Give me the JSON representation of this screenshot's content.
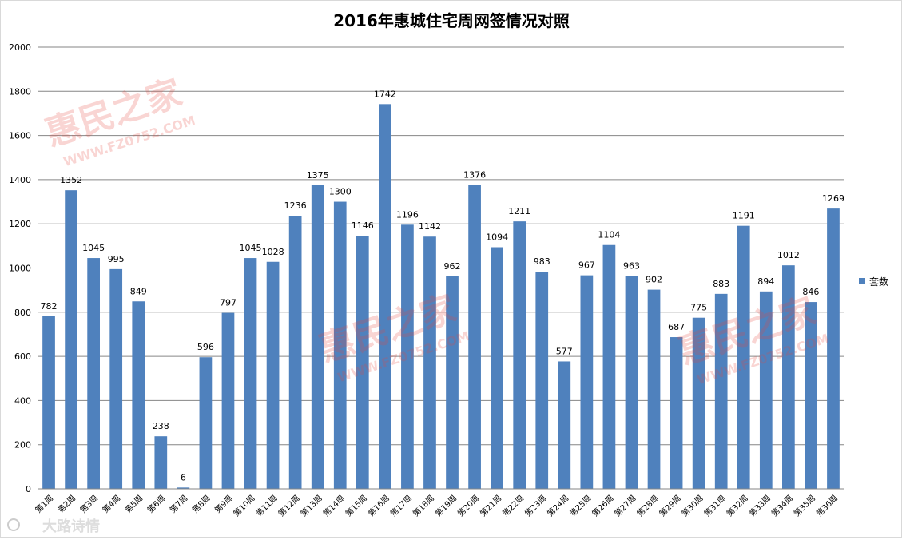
{
  "chart_data": {
    "type": "bar",
    "title": "2016年惠城住宅周网签情况对照",
    "xlabel": "",
    "ylabel": "",
    "ylim": [
      0,
      2000
    ],
    "yticks": [
      0,
      200,
      400,
      600,
      800,
      1000,
      1200,
      1400,
      1600,
      1800,
      2000
    ],
    "grid": true,
    "legend_position": "right",
    "categories": [
      "第1周",
      "第2周",
      "第3周",
      "第4周",
      "第5周",
      "第6周",
      "第7周",
      "第8周",
      "第9周",
      "第10周",
      "第11周",
      "第12周",
      "第13周",
      "第14周",
      "第15周",
      "第16周",
      "第17周",
      "第18周",
      "第19周",
      "第20周",
      "第21周",
      "第22周",
      "第23周",
      "第24周",
      "第25周",
      "第26周",
      "第27周",
      "第28周",
      "第29周",
      "第30周",
      "第31周",
      "第32周",
      "第33周",
      "第34周",
      "第35周",
      "第36周"
    ],
    "series": [
      {
        "name": "套数",
        "color": "#4f81bd",
        "values": [
          782,
          1352,
          1045,
          995,
          849,
          238,
          6,
          596,
          797,
          1045,
          1028,
          1236,
          1375,
          1300,
          1146,
          1742,
          1196,
          1142,
          962,
          1376,
          1094,
          1211,
          983,
          577,
          967,
          1104,
          963,
          902,
          687,
          775,
          883,
          1191,
          894,
          1012,
          846,
          1269
        ]
      }
    ]
  },
  "watermark": {
    "brand": "惠民之家",
    "url": "WWW.FZ0752.COM",
    "color": "#e8463c"
  },
  "footer_watermark": {
    "text": "大路诗情"
  }
}
